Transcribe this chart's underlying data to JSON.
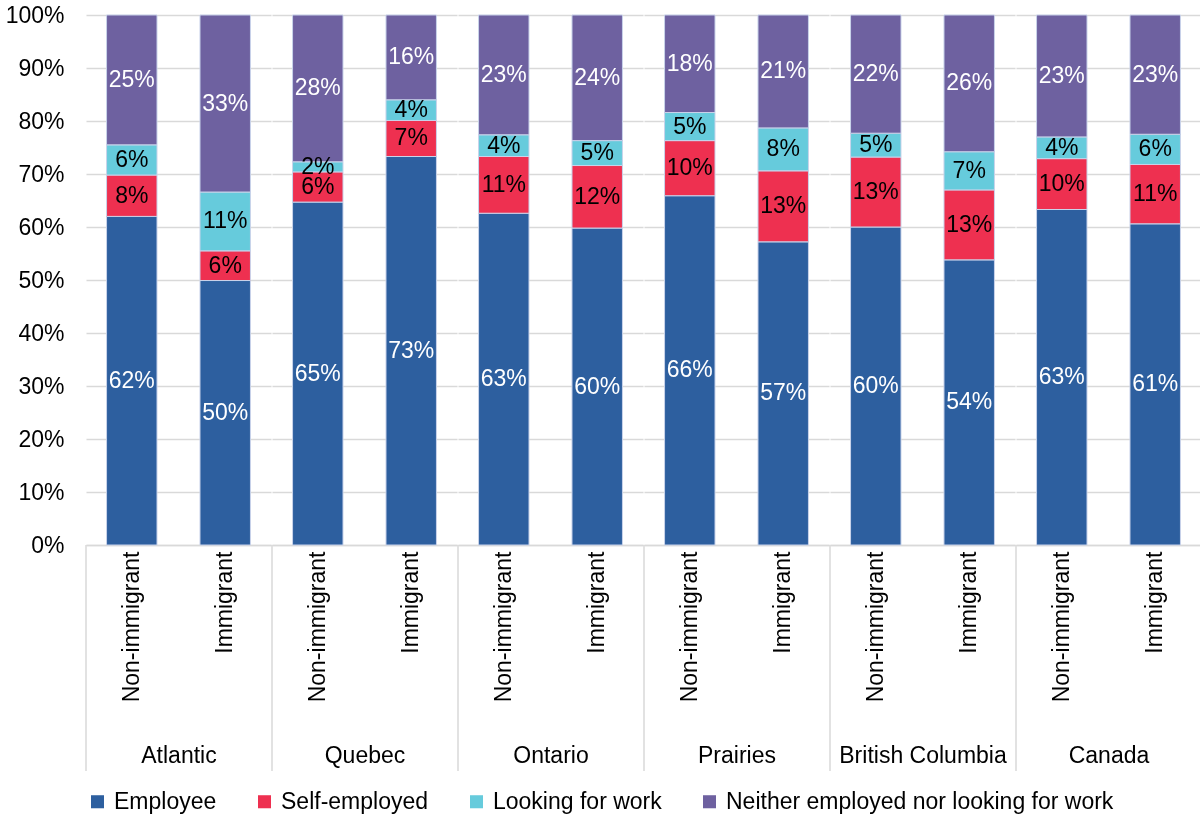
{
  "chart_data": [
    {
      "type": "bar",
      "stacked": true,
      "xlabel": "Atlantic",
      "categories": [
        "Non-immigrant",
        "Immigrant"
      ],
      "series": [
        {
          "name": "Employee",
          "color": "#2d5f9f",
          "values": [
            62.0,
            49.9
          ],
          "value_labels": [
            "62%",
            "50%"
          ]
        },
        {
          "name": "Self-employed",
          "color": "#ee3050",
          "values": [
            7.8,
            5.6
          ],
          "value_labels": [
            "8%",
            "6%"
          ]
        },
        {
          "name": "Looking for work",
          "color": "#66cbdc",
          "values": [
            5.7,
            11.1
          ],
          "value_labels": [
            "6%",
            "11%"
          ]
        },
        {
          "name": "Neither employed nor looking for work",
          "color": "#6e61a0",
          "values": [
            24.5,
            33.4
          ],
          "value_labels": [
            "25%",
            "33%"
          ]
        }
      ],
      "ylim": [
        0,
        100
      ],
      "yticks": [
        {
          "value": 0,
          "label": "0%"
        },
        {
          "value": 10,
          "label": "10%"
        },
        {
          "value": 20,
          "label": "20%"
        },
        {
          "value": 30,
          "label": "30%"
        },
        {
          "value": 40,
          "label": "40%"
        },
        {
          "value": 50,
          "label": "50%"
        },
        {
          "value": 60,
          "label": "60%"
        },
        {
          "value": 70,
          "label": "70%"
        },
        {
          "value": 80,
          "label": "80%"
        },
        {
          "value": 90,
          "label": "90%"
        },
        {
          "value": 100,
          "label": "100%"
        }
      ],
      "grid": "y",
      "legend": "bottom"
    },
    {
      "type": "bar",
      "stacked": true,
      "xlabel": "Quebec",
      "categories": [
        "Non-immigrant",
        "Immigrant"
      ],
      "series": [
        {
          "name": "Employee",
          "color": "#2d5f9f",
          "values": [
            64.7,
            73.3
          ],
          "value_labels": [
            "65%",
            "73%"
          ]
        },
        {
          "name": "Self-employed",
          "color": "#ee3050",
          "values": [
            5.7,
            6.8
          ],
          "value_labels": [
            "6%",
            "7%"
          ]
        },
        {
          "name": "Looking for work",
          "color": "#66cbdc",
          "values": [
            1.9,
            3.9
          ],
          "value_labels": [
            "2%",
            "4%"
          ]
        },
        {
          "name": "Neither employed nor looking for work",
          "color": "#6e61a0",
          "values": [
            27.7,
            16.0
          ],
          "value_labels": [
            "28%",
            "16%"
          ]
        }
      ],
      "ylim": [
        0,
        100
      ],
      "yticks": [
        {
          "value": 0,
          "label": null
        },
        {
          "value": 10,
          "label": null
        },
        {
          "value": 20,
          "label": null
        },
        {
          "value": 30,
          "label": null
        },
        {
          "value": 40,
          "label": null
        },
        {
          "value": 50,
          "label": null
        },
        {
          "value": 60,
          "label": null
        },
        {
          "value": 70,
          "label": null
        },
        {
          "value": 80,
          "label": null
        },
        {
          "value": 90,
          "label": null
        },
        {
          "value": 100,
          "label": null
        }
      ],
      "grid": "y",
      "legend": "bottom",
      "tick_labels": "x"
    },
    {
      "type": "bar",
      "stacked": true,
      "xlabel": "Ontario",
      "categories": [
        "Non-immigrant",
        "Immigrant"
      ],
      "series": [
        {
          "name": "Employee",
          "color": "#2d5f9f",
          "values": [
            62.6,
            59.8
          ],
          "value_labels": [
            "63%",
            "60%"
          ]
        },
        {
          "name": "Self-employed",
          "color": "#ee3050",
          "values": [
            10.7,
            11.8
          ],
          "value_labels": [
            "11%",
            "12%"
          ]
        },
        {
          "name": "Looking for work",
          "color": "#66cbdc",
          "values": [
            4.1,
            4.7
          ],
          "value_labels": [
            "4%",
            "5%"
          ]
        },
        {
          "name": "Neither employed nor looking for work",
          "color": "#6e61a0",
          "values": [
            22.6,
            23.7
          ],
          "value_labels": [
            "23%",
            "24%"
          ]
        }
      ],
      "ylim": [
        0,
        100
      ],
      "yticks": [
        {
          "value": 0,
          "label": null
        },
        {
          "value": 10,
          "label": null
        },
        {
          "value": 20,
          "label": null
        },
        {
          "value": 30,
          "label": null
        },
        {
          "value": 40,
          "label": null
        },
        {
          "value": 50,
          "label": null
        },
        {
          "value": 60,
          "label": null
        },
        {
          "value": 70,
          "label": null
        },
        {
          "value": 80,
          "label": null
        },
        {
          "value": 90,
          "label": null
        },
        {
          "value": 100,
          "label": null
        }
      ],
      "grid": "y",
      "legend": "bottom",
      "tick_labels": "x"
    },
    {
      "type": "bar",
      "stacked": true,
      "xlabel": "Prairies",
      "categories": [
        "Non-immigrant",
        "Immigrant"
      ],
      "series": [
        {
          "name": "Employee",
          "color": "#2d5f9f",
          "values": [
            65.9,
            57.2
          ],
          "value_labels": [
            "66%",
            "57%"
          ]
        },
        {
          "name": "Self-employed",
          "color": "#ee3050",
          "values": [
            10.4,
            13.4
          ],
          "value_labels": [
            "10%",
            "13%"
          ]
        },
        {
          "name": "Looking for work",
          "color": "#66cbdc",
          "values": [
            5.3,
            8.1
          ],
          "value_labels": [
            "5%",
            "8%"
          ]
        },
        {
          "name": "Neither employed nor looking for work",
          "color": "#6e61a0",
          "values": [
            18.4,
            21.3
          ],
          "value_labels": [
            "18%",
            "21%"
          ]
        }
      ],
      "ylim": [
        0,
        100
      ],
      "yticks": [
        {
          "value": 0,
          "label": null
        },
        {
          "value": 10,
          "label": null
        },
        {
          "value": 20,
          "label": null
        },
        {
          "value": 30,
          "label": null
        },
        {
          "value": 40,
          "label": null
        },
        {
          "value": 50,
          "label": null
        },
        {
          "value": 60,
          "label": null
        },
        {
          "value": 70,
          "label": null
        },
        {
          "value": 80,
          "label": null
        },
        {
          "value": 90,
          "label": null
        },
        {
          "value": 100,
          "label": null
        }
      ],
      "grid": "y",
      "legend": "bottom",
      "tick_labels": "x"
    },
    {
      "type": "bar",
      "stacked": true,
      "xlabel": "British Columbia",
      "categories": [
        "Non-immigrant",
        "Immigrant"
      ],
      "series": [
        {
          "name": "Employee",
          "color": "#2d5f9f",
          "values": [
            60.0,
            53.8
          ],
          "value_labels": [
            "60%",
            "54%"
          ]
        },
        {
          "name": "Self-employed",
          "color": "#ee3050",
          "values": [
            13.2,
            13.2
          ],
          "value_labels": [
            "13%",
            "13%"
          ]
        },
        {
          "name": "Looking for work",
          "color": "#66cbdc",
          "values": [
            4.5,
            7.2
          ],
          "value_labels": [
            "5%",
            "7%"
          ]
        },
        {
          "name": "Neither employed nor looking for work",
          "color": "#6e61a0",
          "values": [
            22.3,
            25.8
          ],
          "value_labels": [
            "22%",
            "26%"
          ]
        }
      ],
      "ylim": [
        0,
        100
      ],
      "yticks": [
        {
          "value": 0,
          "label": null
        },
        {
          "value": 10,
          "label": null
        },
        {
          "value": 20,
          "label": null
        },
        {
          "value": 30,
          "label": null
        },
        {
          "value": 40,
          "label": null
        },
        {
          "value": 50,
          "label": null
        },
        {
          "value": 60,
          "label": null
        },
        {
          "value": 70,
          "label": null
        },
        {
          "value": 80,
          "label": null
        },
        {
          "value": 90,
          "label": null
        },
        {
          "value": 100,
          "label": null
        }
      ],
      "grid": "y",
      "legend": "bottom",
      "tick_labels": "x"
    },
    {
      "type": "bar",
      "stacked": true,
      "xlabel": "Canada",
      "categories": [
        "Non-immigrant",
        "Immigrant"
      ],
      "series": [
        {
          "name": "Employee",
          "color": "#2d5f9f",
          "values": [
            63.3,
            60.6
          ],
          "value_labels": [
            "63%",
            "61%"
          ]
        },
        {
          "name": "Self-employed",
          "color": "#ee3050",
          "values": [
            9.6,
            11.2
          ],
          "value_labels": [
            "10%",
            "11%"
          ]
        },
        {
          "name": "Looking for work",
          "color": "#66cbdc",
          "values": [
            4.1,
            5.7
          ],
          "value_labels": [
            "4%",
            "6%"
          ]
        },
        {
          "name": "Neither employed nor looking for work",
          "color": "#6e61a0",
          "values": [
            23.0,
            22.5
          ],
          "value_labels": [
            "23%",
            "23%"
          ]
        }
      ],
      "ylim": [
        0,
        100
      ],
      "yticks": [
        {
          "value": 0,
          "label": null
        },
        {
          "value": 10,
          "label": null
        },
        {
          "value": 20,
          "label": null
        },
        {
          "value": 30,
          "label": null
        },
        {
          "value": 40,
          "label": null
        },
        {
          "value": 50,
          "label": null
        },
        {
          "value": 60,
          "label": null
        },
        {
          "value": 70,
          "label": null
        },
        {
          "value": 80,
          "label": null
        },
        {
          "value": 90,
          "label": null
        },
        {
          "value": 100,
          "label": null
        }
      ],
      "grid": "y",
      "legend": "bottom",
      "tick_labels": "x"
    }
  ]
}
